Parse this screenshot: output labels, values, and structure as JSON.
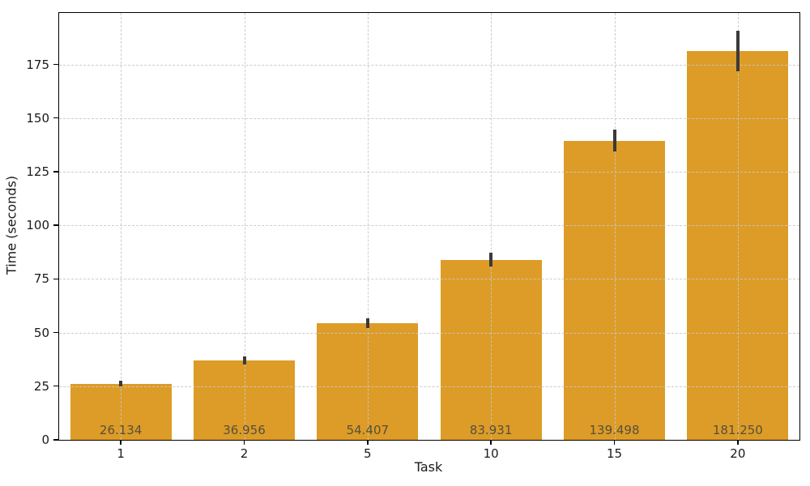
{
  "chart_data": {
    "type": "bar",
    "title": "",
    "xlabel": "Task",
    "ylabel": "Time (seconds)",
    "categories": [
      "1",
      "2",
      "5",
      "10",
      "15",
      "20"
    ],
    "values": [
      26.134,
      36.956,
      54.407,
      83.931,
      139.498,
      181.25
    ],
    "value_labels": [
      "26.134",
      "36.956",
      "54.407",
      "83.931",
      "139.498",
      "181.250"
    ],
    "errors": [
      1.3,
      1.9,
      2.4,
      3.2,
      5.2,
      9.5
    ],
    "yticks": [
      0,
      25,
      50,
      75,
      100,
      125,
      150,
      175
    ],
    "ylim": [
      0,
      199
    ],
    "grid": "dashed, horizontal and vertical, drawn over bars",
    "legend": "none",
    "colors": {
      "bar": "#DD9C27",
      "error_bar": "#3A3A3A",
      "grid": "#C8C8C8",
      "spine": "#000000",
      "tick_text": "#1A1A1A",
      "bar_label_text": "#55503D"
    }
  }
}
